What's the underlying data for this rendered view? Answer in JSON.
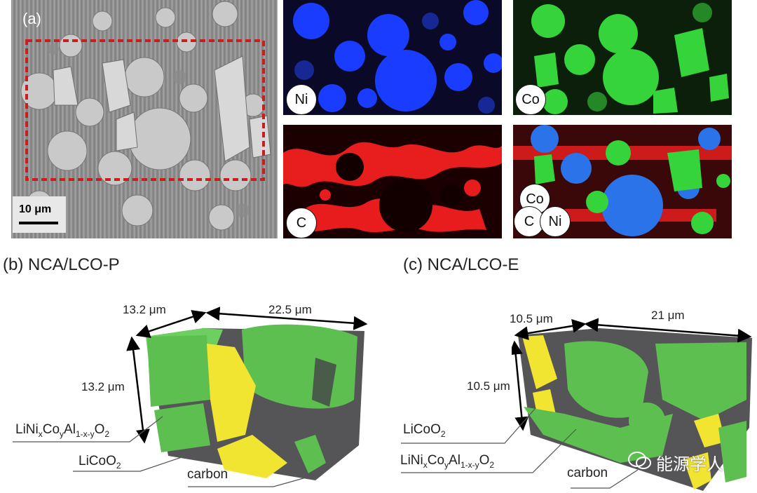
{
  "panel_a": {
    "label": "(a)",
    "scale_bar": "10 μm",
    "maps": {
      "ni": "Ni",
      "co": "Co",
      "c": "C",
      "overlay": [
        "Co",
        "C",
        "Ni"
      ]
    }
  },
  "panel_b": {
    "heading": "(b) NCA/LCO-P",
    "dims": {
      "depth": "13.2 μm",
      "width": "22.5 μm",
      "height": "13.2 μm"
    },
    "callouts": {
      "nca_base": "LiNi",
      "x": "x",
      "co": "Co",
      "y": "y",
      "al": "Al",
      "sub": "1-x-y",
      "o": "O",
      "o_sub": "2",
      "lco": "LiCoO",
      "lco_sub": "2",
      "carbon": "carbon"
    }
  },
  "panel_c": {
    "heading": "(c) NCA/LCO-E",
    "dims": {
      "depth": "10.5 μm",
      "width": "21 μm",
      "height": "10.5 μm"
    },
    "callouts": {
      "lco": "LiCoO",
      "lco_sub": "2",
      "nca_base": "LiNi",
      "x": "x",
      "co": "Co",
      "y": "y",
      "al": "Al",
      "sub": "1-x-y",
      "o": "O",
      "o_sub": "2",
      "carbon": "carbon"
    }
  },
  "watermark": "能源学人",
  "colors": {
    "ni": "#1a3cff",
    "co": "#35d43a",
    "carbon_map": "#ff2020",
    "nca": "#5dbf4f",
    "lco": "#f2e531",
    "carbon": "#555558",
    "roi": "#c81e1e"
  }
}
